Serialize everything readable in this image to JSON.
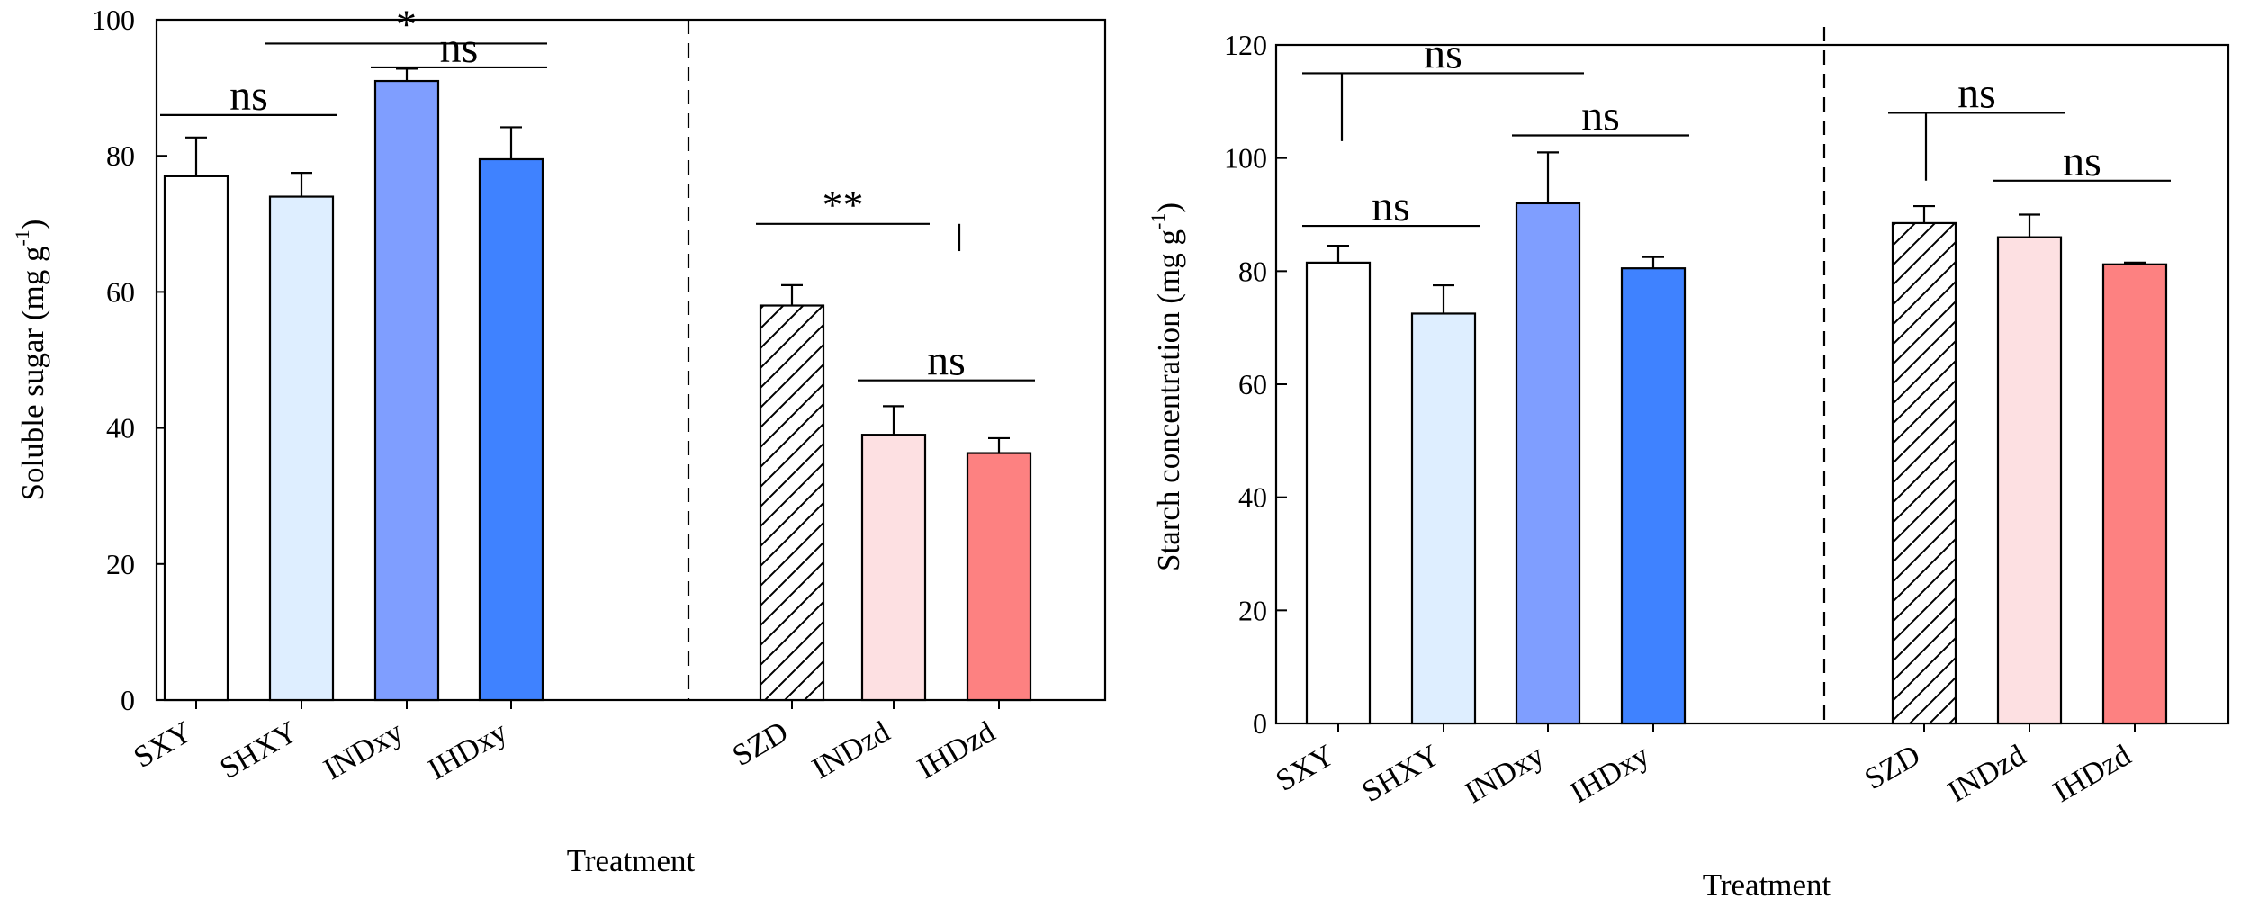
{
  "colors": {
    "SXY": "#ffffff",
    "SHXY": "#deeeff",
    "INDxy": "#7f9eff",
    "IHDxy": "#3f82ff",
    "SZD": "#ffffff",
    "INDzd": "#fde0e2",
    "IHDzd": "#fd8181"
  },
  "chart_data": [
    {
      "type": "bar",
      "title": "",
      "xlabel": "Treatment",
      "ylabel_main": "Soluble sugar (mg g",
      "ylabel_sup": "-1",
      "ylabel_close": ")",
      "ylim": [
        0,
        100
      ],
      "yticks": [
        "0",
        "20",
        "40",
        "60",
        "80",
        "100"
      ],
      "categories": [
        "SXY",
        "SHXY",
        "INDxy",
        "IHDxy",
        "SZD",
        "INDzd",
        "IHDzd"
      ],
      "values": [
        77,
        74,
        91,
        79.5,
        58,
        39,
        36.3
      ],
      "errors": [
        5.7,
        3.5,
        1.8,
        4.7,
        3,
        4.2,
        2.2
      ],
      "hatched": [
        false,
        false,
        false,
        false,
        true,
        false,
        false
      ],
      "annotations": [
        {
          "label": "ns",
          "from": 0,
          "to": 1,
          "at": 86
        },
        {
          "label": "*",
          "from": 1,
          "to": 3,
          "at": 96.5
        },
        {
          "label": "ns",
          "from": 2,
          "to": 3,
          "at": 93
        },
        {
          "label": "**",
          "from": 4,
          "to": 5,
          "at": 70
        },
        {
          "label": "ns",
          "from": 5,
          "to": 6,
          "at": 47
        }
      ]
    },
    {
      "type": "bar",
      "title": "",
      "xlabel": "Treatment",
      "ylabel_main": "Starch concentration (mg g",
      "ylabel_sup": "-1",
      "ylabel_close": ")",
      "ylim": [
        0,
        120
      ],
      "yticks": [
        "0",
        "20",
        "40",
        "60",
        "80",
        "100",
        "120"
      ],
      "categories": [
        "SXY",
        "SHXY",
        "INDxy",
        "IHDxy",
        "SZD",
        "INDzd",
        "IHDzd"
      ],
      "values": [
        81.5,
        72.5,
        92,
        80.5,
        88.5,
        86,
        81.2
      ],
      "errors": [
        3,
        5,
        9,
        2,
        3,
        4,
        0.3
      ],
      "hatched": [
        false,
        false,
        false,
        false,
        true,
        false,
        false
      ],
      "annotations": [
        {
          "label": "ns",
          "from": 0,
          "to": 1,
          "at": 88
        },
        {
          "label": "ns",
          "from": 0,
          "to": 2,
          "at": 115
        },
        {
          "label": "ns",
          "from": 2,
          "to": 3,
          "at": 104
        },
        {
          "label": "ns",
          "from": 4,
          "to": 5,
          "at": 108
        },
        {
          "label": "ns",
          "from": 5,
          "to": 6,
          "at": 96
        }
      ]
    }
  ]
}
